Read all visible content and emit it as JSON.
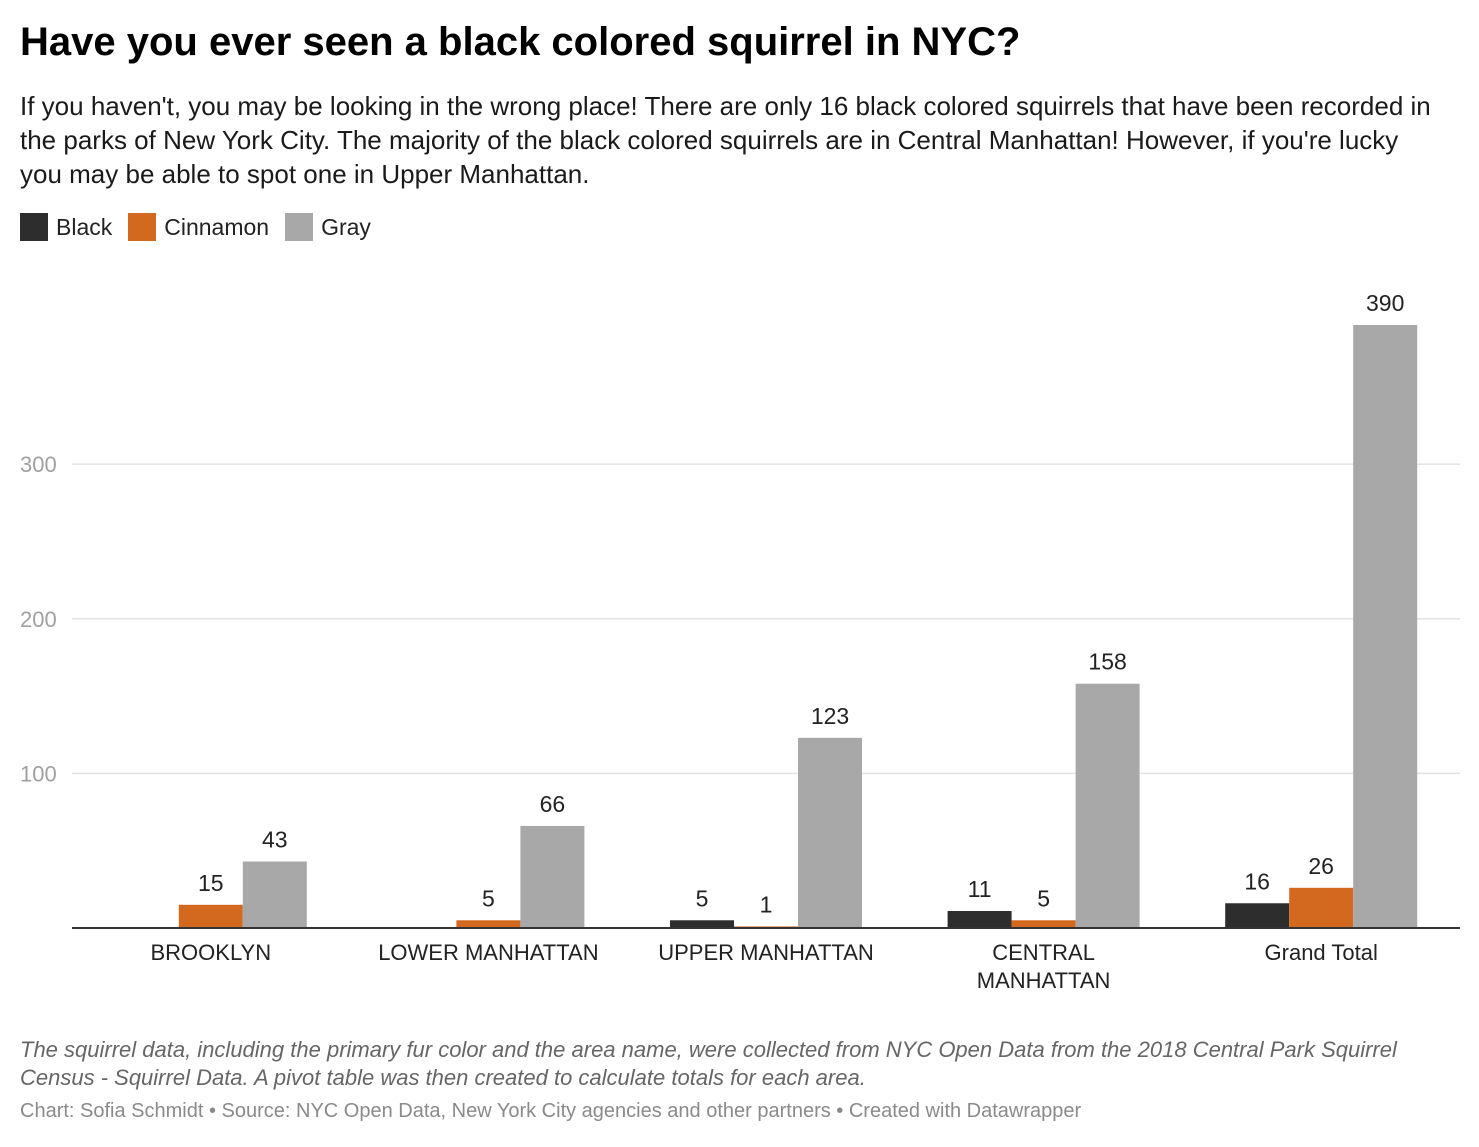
{
  "title": "Have you ever seen a black colored squirrel in NYC?",
  "subtitle": "If you haven't, you may be looking in the wrong place! There are only 16 black colored squirrels that have been recorded in the parks of New York City. The majority of the black colored squirrels are in Central Manhattan! However, if you're lucky you may be able to spot one in Upper Manhattan.",
  "legend": [
    {
      "label": "Black",
      "color": "#2d2d2d"
    },
    {
      "label": "Cinnamon",
      "color": "#d2691e"
    },
    {
      "label": "Gray",
      "color": "#a8a8a8"
    }
  ],
  "chart_data": {
    "type": "bar",
    "categories": [
      "BROOKLYN",
      "LOWER MANHATTAN",
      "UPPER MANHATTAN",
      "CENTRAL MANHATTAN",
      "Grand Total"
    ],
    "series": [
      {
        "name": "Black",
        "color": "#2d2d2d",
        "values": [
          null,
          null,
          5,
          11,
          16
        ]
      },
      {
        "name": "Cinnamon",
        "color": "#d2691e",
        "values": [
          15,
          5,
          1,
          5,
          26
        ]
      },
      {
        "name": "Gray",
        "color": "#a8a8a8",
        "values": [
          43,
          66,
          123,
          158,
          390
        ]
      }
    ],
    "yticks": [
      100,
      200,
      300
    ],
    "ylim": [
      0,
      390
    ],
    "grid": true,
    "legend_position": "top-left"
  },
  "notes": "The squirrel data, including the primary fur color and the area name, were collected from NYC Open Data from the 2018 Central Park Squirrel Census - Squirrel Data. A pivot table was then created to calculate totals for each area.",
  "footer": "Chart: Sofia Schmidt • Source: NYC Open Data, New York City agencies and other partners • Created with Datawrapper"
}
